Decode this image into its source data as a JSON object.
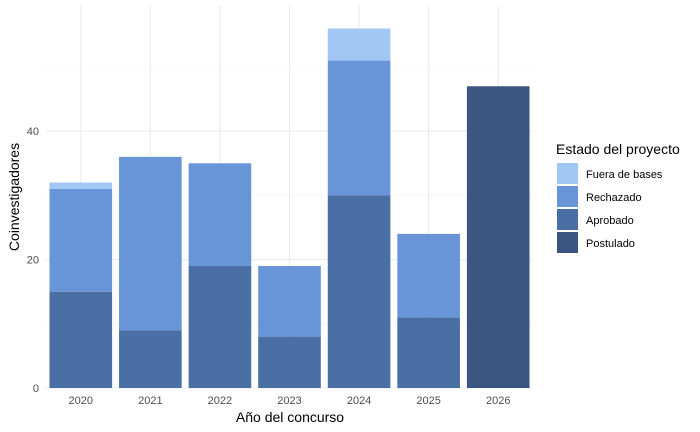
{
  "chart_data": {
    "type": "bar",
    "stacked": true,
    "title": "",
    "xlabel": "Año del concurso",
    "ylabel": "Coinvestigadores",
    "categories": [
      "2020",
      "2021",
      "2022",
      "2023",
      "2024",
      "2025",
      "2026"
    ],
    "series": [
      {
        "name": "Postulado",
        "color": "#3A5680",
        "values": [
          0,
          0,
          0,
          0,
          0,
          0,
          47
        ]
      },
      {
        "name": "Aprobado",
        "color": "#4A6FA5",
        "values": [
          15,
          9,
          19,
          8,
          30,
          11,
          0
        ]
      },
      {
        "name": "Rechazado",
        "color": "#6795D8",
        "values": [
          16,
          27,
          16,
          11,
          21,
          13,
          0
        ]
      },
      {
        "name": "Fuera de bases",
        "color": "#A3C7F5",
        "values": [
          1,
          0,
          0,
          0,
          5,
          0,
          0
        ]
      }
    ],
    "ylim": [
      0,
      59.5
    ],
    "yticks": [
      0,
      20,
      40
    ],
    "grid": true,
    "legend": {
      "title": "Estado del proyecto",
      "placement": "right",
      "order": [
        "Fuera de bases",
        "Rechazado",
        "Aprobado",
        "Postulado"
      ]
    }
  }
}
